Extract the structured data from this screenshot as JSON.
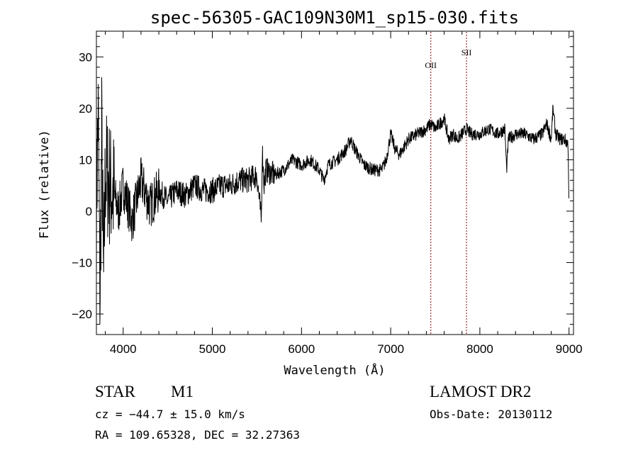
{
  "chart_data": {
    "type": "line",
    "title": "spec-56305-GAC109N30M1_sp15-030.fits",
    "xlabel": "Wavelength (Å)",
    "ylabel": "Flux (relative)",
    "xlim": [
      3700,
      9050
    ],
    "ylim": [
      -24,
      35
    ],
    "xticks": [
      4000,
      5000,
      6000,
      7000,
      8000,
      9000
    ],
    "yticks": [
      -20,
      -10,
      0,
      10,
      20,
      30
    ],
    "ytick_labels": [
      "−20",
      "−10",
      "0",
      "10",
      "20",
      "30"
    ],
    "line_color": "#000000",
    "marker_color": "#8b0000",
    "series": [
      {
        "x": [
          3700,
          3720,
          3740,
          3760,
          3780,
          3800,
          3850,
          3900,
          3950,
          4000,
          4100,
          4200,
          4300,
          4400,
          4500,
          4600,
          4700,
          4800,
          4900,
          5000,
          5100,
          5200,
          5300,
          5400,
          5500,
          5550,
          5560,
          5580,
          5600,
          5700,
          5800,
          5900,
          6000,
          6100,
          6200,
          6250,
          6300,
          6400,
          6500,
          6550,
          6600,
          6700,
          6800,
          6900,
          6950,
          7000,
          7050,
          7100,
          7200,
          7300,
          7400,
          7450,
          7500,
          7550,
          7600,
          7650,
          7700,
          7750,
          7800,
          7850,
          7900,
          8000,
          8100,
          8200,
          8280,
          8300,
          8320,
          8400,
          8500,
          8600,
          8700,
          8750,
          8800,
          8820,
          8850,
          8900,
          8950,
          8990,
          9000
        ],
        "y": [
          0,
          20,
          -18,
          15,
          -15,
          8,
          5,
          3,
          0,
          5,
          -2,
          6,
          1,
          4,
          2,
          4,
          3,
          5,
          4,
          4,
          5,
          5,
          6,
          6,
          7,
          -2,
          12,
          5,
          8,
          7,
          8,
          10,
          9,
          10,
          8,
          6,
          9,
          10,
          12,
          14,
          12,
          9,
          8,
          8,
          10,
          15,
          12,
          11,
          14,
          15,
          16,
          17,
          16,
          17,
          18,
          14,
          15,
          14,
          15,
          16,
          15,
          15,
          16,
          15,
          16,
          8,
          14,
          15,
          15,
          14,
          15,
          17,
          14,
          20,
          15,
          14,
          14,
          13,
          0
        ]
      }
    ],
    "line_markers": [
      {
        "label": "OII",
        "x": 7450
      },
      {
        "label": "SII",
        "x": 7850
      }
    ]
  },
  "info": {
    "object_class": "STAR",
    "subclass": "M1",
    "survey": "LAMOST DR2",
    "cz": "cz = −44.7 ± 15.0 km/s",
    "obs_date": "Obs-Date: 20130112",
    "coords": "RA = 109.65328, DEC =  32.27363"
  }
}
